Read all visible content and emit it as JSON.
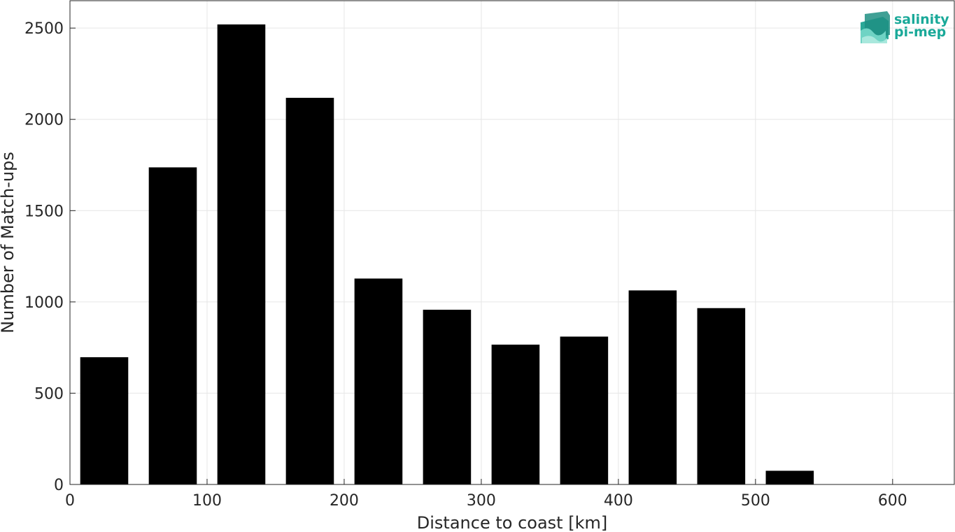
{
  "chart_data": {
    "type": "bar",
    "x": [
      25,
      75,
      125,
      175,
      225,
      275,
      325,
      375,
      425,
      475,
      525
    ],
    "values": [
      697,
      1737,
      2520,
      2118,
      1128,
      957,
      766,
      810,
      1063,
      966,
      75
    ],
    "bar_width": 35,
    "xlabel": "Distance to coast [km]",
    "ylabel": "Number of Match-ups",
    "xlim": [
      0,
      645
    ],
    "ylim": [
      0,
      2650
    ],
    "xticks": [
      0,
      100,
      200,
      300,
      400,
      500,
      600
    ],
    "yticks": [
      0,
      500,
      1000,
      1500,
      2000,
      2500
    ],
    "grid": true,
    "bar_color": "#000000"
  },
  "logo": {
    "line1": "salinity",
    "line2": "pi-mep",
    "color": "#1aa999"
  }
}
